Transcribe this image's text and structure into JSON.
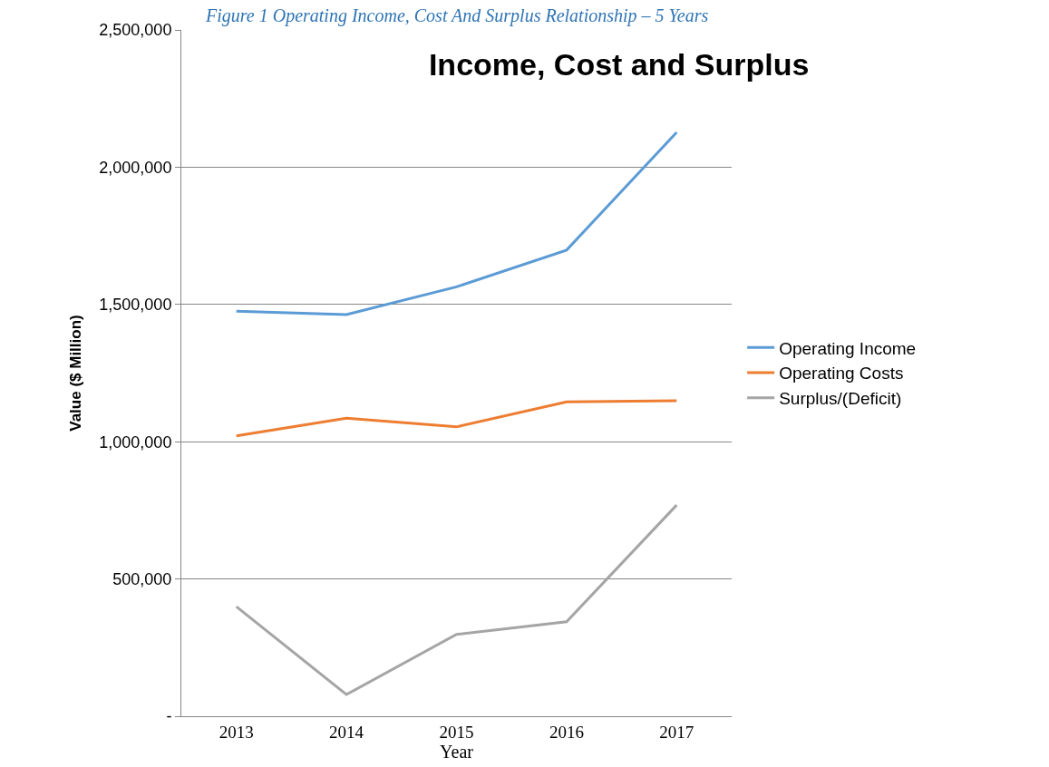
{
  "chart_data": {
    "type": "line",
    "title": "Income, Cost and Surplus",
    "xlabel": "Year",
    "ylabel": "Value ($ Million)",
    "annotations": [
      "Figure 1 Operating Income, Cost And Surplus Relationship – 5 Years"
    ],
    "categories": [
      "2013",
      "2014",
      "2015",
      "2016",
      "2017"
    ],
    "series": [
      {
        "name": "Operating Income",
        "color": "#5b9bd5",
        "values": [
          1475000,
          1463000,
          1564000,
          1698000,
          2127000
        ]
      },
      {
        "name": "Operating Costs",
        "color": "#ed7d31",
        "values": [
          1021000,
          1086000,
          1054000,
          1145000,
          1149000
        ]
      },
      {
        "name": "Surplus/(Deficit)",
        "color": "#a5a5a5",
        "values": [
          399000,
          79000,
          298000,
          344000,
          769000
        ]
      }
    ],
    "ylim": [
      0,
      2500000
    ],
    "yticks": [
      {
        "value": 0,
        "label": "-"
      },
      {
        "value": 500000,
        "label": "500,000"
      },
      {
        "value": 1000000,
        "label": "1,000,000"
      },
      {
        "value": 1500000,
        "label": "1,500,000"
      },
      {
        "value": 2000000,
        "label": "2,000,000"
      },
      {
        "value": 2500000,
        "label": "2,500,000"
      }
    ],
    "grid": "y",
    "legend": "right",
    "marker": "none",
    "line_style": "solid"
  }
}
